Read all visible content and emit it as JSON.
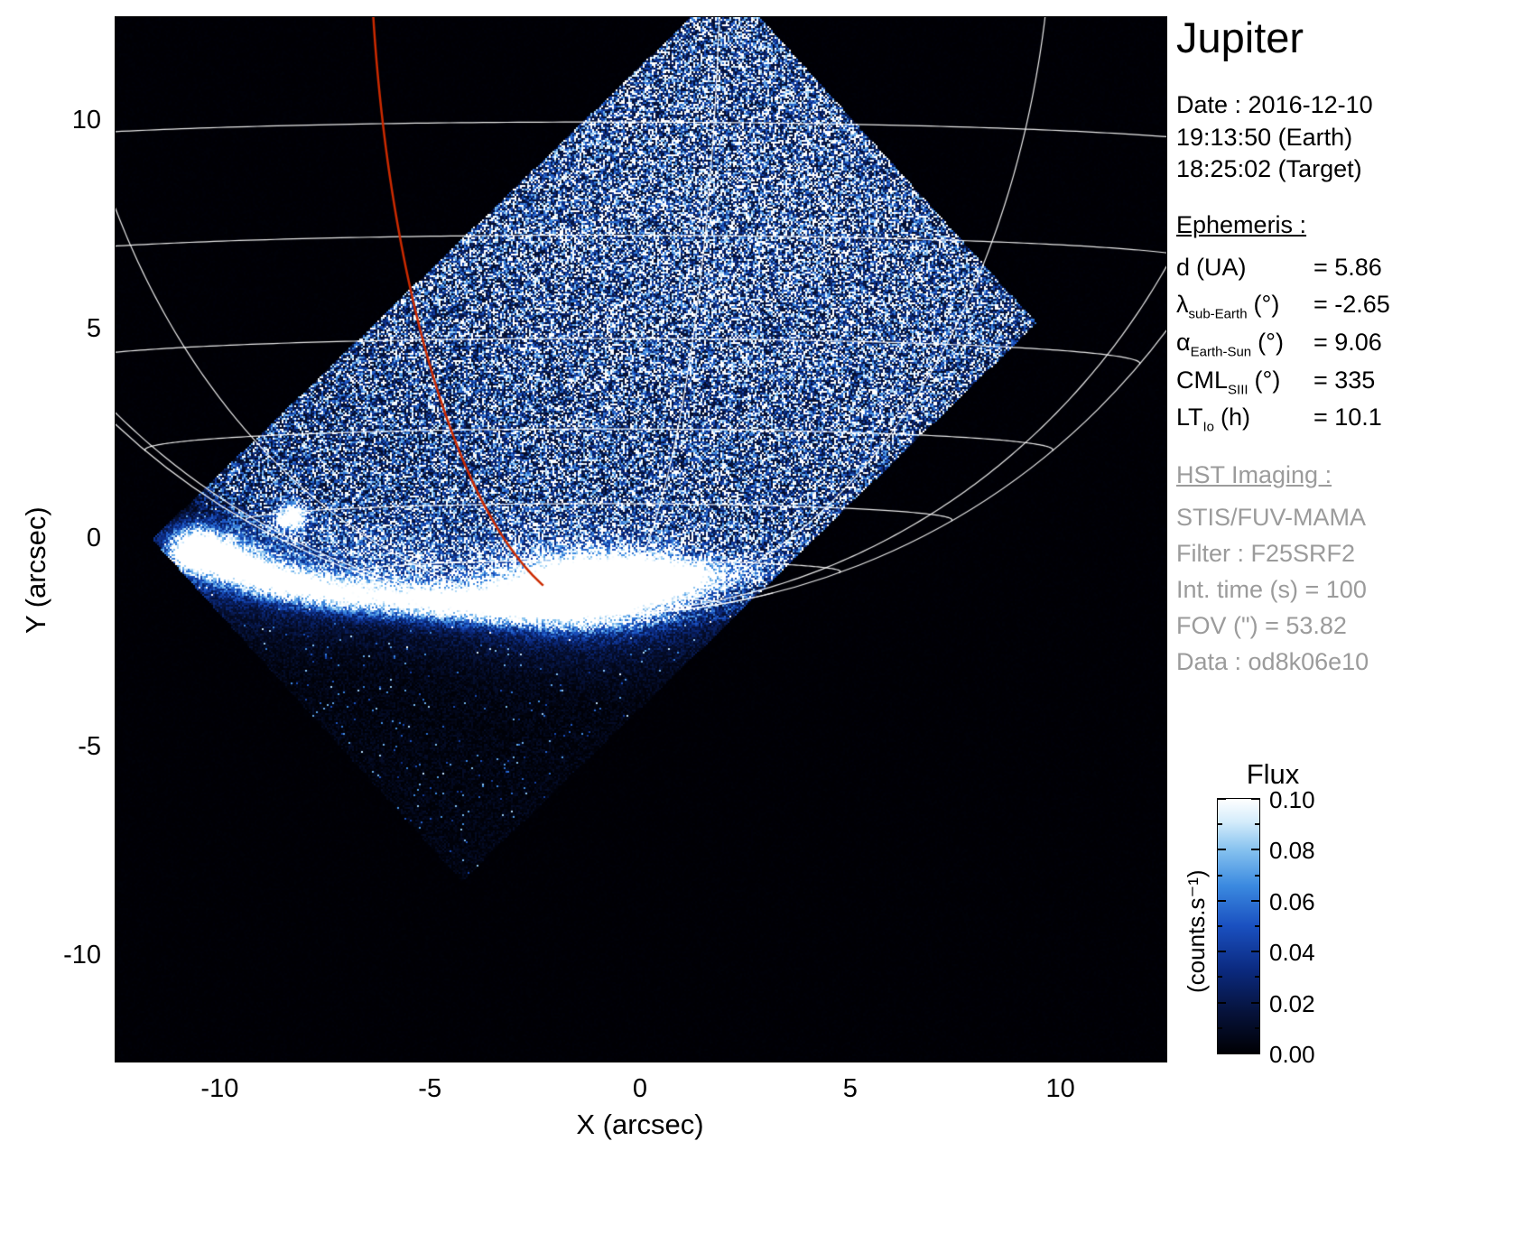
{
  "info_panel": {
    "title": "Jupiter",
    "date_line1": "Date : 2016-12-10",
    "date_line2": "19:13:50 (Earth)",
    "date_line3": "18:25:02 (Target)",
    "ephemeris_heading": "Ephemeris :",
    "ephemeris": [
      {
        "sym": "d",
        "sub": "",
        "unit": "(UA)",
        "value": "= 5.86"
      },
      {
        "sym": "λ",
        "sub": "sub-Earth",
        "unit": "(°)",
        "value": "= -2.65"
      },
      {
        "sym": "α",
        "sub": "Earth-Sun",
        "unit": "(°)",
        "value": "= 9.06"
      },
      {
        "sym": "CML",
        "sub": "SIII",
        "unit": "(°)",
        "value": "= 335"
      },
      {
        "sym": "LT",
        "sub": "Io",
        "unit": "(h)",
        "value": "= 10.1"
      }
    ],
    "hst_heading": "HST Imaging :",
    "hst_lines": [
      "STIS/FUV-MAMA",
      "Filter : F25SRF2",
      "Int. time (s) = 100",
      "FOV (\") = 53.82",
      "Data : od8k06e10"
    ]
  },
  "colorbar": {
    "title": "Flux",
    "unit": "(counts.s⁻¹)",
    "ticks": [
      0.1,
      0.08,
      0.06,
      0.04,
      0.02,
      0.0
    ],
    "tick_labels": [
      "0.10",
      "0.08",
      "0.06",
      "0.04",
      "0.02",
      "0.00"
    ]
  },
  "chart_data": {
    "type": "heatmap",
    "title": "Jupiter",
    "xlabel": "X (arcsec)",
    "ylabel": "Y (arcsec)",
    "xlim": [
      -12.5,
      12.5
    ],
    "ylim": [
      -12.5,
      12.5
    ],
    "xticks": [
      -10,
      -5,
      0,
      5,
      10
    ],
    "yticks": [
      10,
      5,
      0,
      -5,
      -10
    ],
    "flux_range": [
      0.0,
      0.1
    ],
    "grid_on": true,
    "legend": "none",
    "detector_fov_corners": [
      [
        -11.62,
        0.0
      ],
      [
        2.06,
        13.35
      ],
      [
        9.42,
        5.17
      ],
      [
        -4.26,
        -8.18
      ]
    ],
    "planet_grid": {
      "center": [
        -1.0,
        15.0
      ],
      "radius": 16.8,
      "sub_obs_lat_deg": -2.65,
      "parallels_deg": [
        -10,
        -20,
        -30,
        -40,
        -50,
        -60,
        -70,
        -80
      ],
      "meridians_deg": [
        -170,
        -140,
        -110,
        -80,
        -50,
        10,
        40,
        70,
        100,
        130,
        160
      ],
      "red_meridian_deg": -19,
      "grid_color": "#ffffff",
      "red_color": "#cc2a00"
    },
    "aurora_features": [
      [
        -10.55,
        -0.22,
        0.38,
        0.3,
        1.7
      ],
      [
        -10.0,
        -0.45,
        0.5,
        0.26,
        1.5
      ],
      [
        -9.2,
        -0.8,
        0.55,
        0.26,
        1.3
      ],
      [
        -8.3,
        -1.05,
        0.6,
        0.25,
        1.2
      ],
      [
        -7.2,
        -1.25,
        0.7,
        0.25,
        1.1
      ],
      [
        -5.9,
        -1.4,
        0.8,
        0.26,
        1.0
      ],
      [
        -4.6,
        -1.5,
        0.75,
        0.26,
        1.1
      ],
      [
        -3.3,
        -1.5,
        0.75,
        0.3,
        1.3
      ],
      [
        -1.9,
        -1.3,
        0.85,
        0.42,
        2.0
      ],
      [
        -0.85,
        -1.1,
        0.95,
        0.45,
        2.4
      ],
      [
        0.35,
        -0.95,
        0.7,
        0.3,
        1.5
      ],
      [
        1.3,
        -0.85,
        0.5,
        0.22,
        0.7
      ],
      [
        2.3,
        -0.75,
        0.7,
        0.22,
        0.35
      ],
      [
        -8.3,
        0.52,
        0.22,
        0.19,
        1.9
      ],
      [
        -1.1,
        -1.3,
        2.4,
        0.95,
        0.42
      ],
      [
        -7.6,
        -0.9,
        2.8,
        0.85,
        0.3
      ],
      [
        -10.2,
        -0.3,
        1.1,
        0.5,
        0.45
      ]
    ],
    "render": {
      "sky_base": 0.045,
      "disk_base": 0.5,
      "hot_pixel_rate": 0.012
    },
    "colormap_stops": [
      [
        0,
        "#000004"
      ],
      [
        0.16,
        "#06123a"
      ],
      [
        0.33,
        "#0b2a80"
      ],
      [
        0.5,
        "#1a50c0"
      ],
      [
        0.66,
        "#3b8ae0"
      ],
      [
        0.8,
        "#86c2ef"
      ],
      [
        0.91,
        "#d4ecfb"
      ],
      [
        1,
        "#ffffff"
      ]
    ]
  }
}
